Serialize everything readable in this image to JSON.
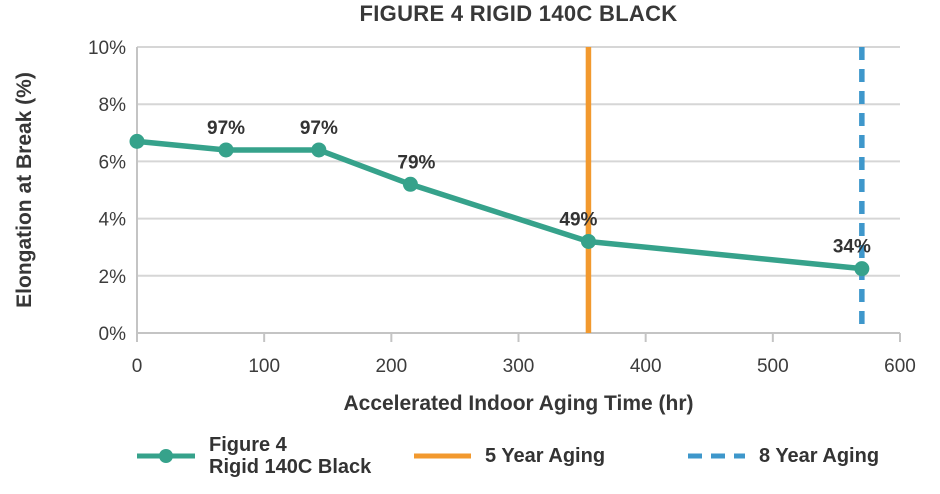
{
  "title": "FIGURE 4 RIGID 140C BLACK",
  "chart_data": {
    "type": "line",
    "title": "FIGURE 4 RIGID 140C BLACK",
    "xlabel": "Accelerated Indoor Aging Time (hr)",
    "ylabel": "Elongation at Break (%)",
    "xlim": [
      0,
      600
    ],
    "ylim": [
      0,
      10
    ],
    "x_tick_values": [
      0,
      100,
      200,
      300,
      400,
      500,
      600
    ],
    "x_tick_labels": [
      "0",
      "100",
      "200",
      "300",
      "400",
      "500",
      "600"
    ],
    "y_tick_values": [
      0,
      2,
      4,
      6,
      8,
      10
    ],
    "y_tick_labels": [
      "0%",
      "2%",
      "4%",
      "6%",
      "8%",
      "10%"
    ],
    "grid": "horizontal",
    "legend_position": "bottom",
    "series": [
      {
        "name": "Figure 4 Rigid 140C Black",
        "color": "#36A28B",
        "x": [
          0,
          70,
          143,
          215,
          355,
          570
        ],
        "y": [
          6.7,
          6.4,
          6.4,
          5.2,
          3.2,
          2.25
        ],
        "point_labels": [
          "",
          "97%",
          "97%",
          "79%",
          "49%",
          "34%"
        ]
      }
    ],
    "vlines": [
      {
        "name": "5 Year Aging",
        "x": 355,
        "color": "#F2992E",
        "style": "solid"
      },
      {
        "name": "8 Year Aging",
        "x": 570,
        "color": "#3E97CB",
        "style": "dashed"
      }
    ]
  },
  "legend": {
    "series": {
      "line1": "Figure 4",
      "line2": "Rigid 140C Black",
      "color": "#36A28B"
    },
    "five_year": {
      "label": "5 Year Aging",
      "color": "#F2992E"
    },
    "eight_year": {
      "label": "8 Year Aging",
      "color": "#3E97CB"
    }
  },
  "colors": {
    "teal": "#36A28B",
    "orange": "#F2992E",
    "blue": "#3E97CB",
    "gridline": "#D6D6D6",
    "axis": "#C4C4C4",
    "text": "#363636"
  }
}
